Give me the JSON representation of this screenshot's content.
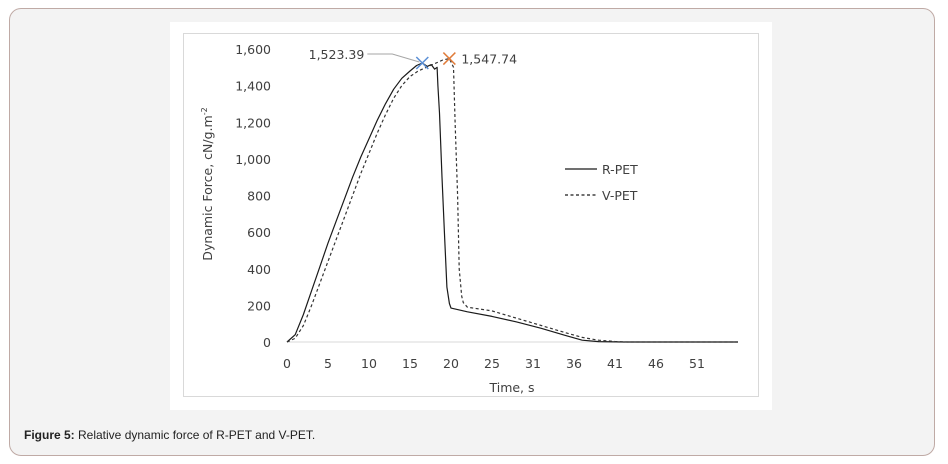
{
  "caption": {
    "label": "Figure 5:",
    "text": " Relative dynamic force of R-PET and V-PET."
  },
  "chart_data": {
    "type": "line",
    "title": "",
    "xlabel": "Time, s",
    "ylabel": "Dynamic Force, cN/g.m",
    "ylabel_superscript": "-2",
    "x_tick_labels": [
      "0",
      "5",
      "10",
      "15",
      "20",
      "25",
      "31",
      "36",
      "41",
      "46",
      "51"
    ],
    "y_tick_labels": [
      "0",
      "200",
      "400",
      "600",
      "800",
      "1,000",
      "1,200",
      "1,400",
      "1,600"
    ],
    "ylim": [
      0,
      1600
    ],
    "xlim": [
      0,
      56
    ],
    "grid": false,
    "legend_position": "right-center",
    "series": [
      {
        "name": "R-PET",
        "style": "solid",
        "color": "#000000",
        "x": [
          0,
          1,
          2,
          3,
          4,
          5,
          6,
          7,
          8,
          9,
          10,
          11,
          12,
          13,
          14,
          15,
          15.8,
          16.5,
          17.1,
          17.6,
          18.0,
          18.3,
          18.4,
          18.6,
          18.9,
          19.2,
          19.5,
          19.8,
          20.0,
          22,
          25,
          28,
          31,
          34,
          36,
          38,
          41,
          46,
          51,
          55
        ],
        "y": [
          0,
          40,
          150,
          280,
          410,
          540,
          660,
          780,
          900,
          1010,
          1110,
          1210,
          1300,
          1380,
          1440,
          1480,
          1510,
          1523.39,
          1505,
          1515,
          1490,
          1500,
          1400,
          1250,
          900,
          600,
          300,
          210,
          185,
          165,
          140,
          110,
          75,
          35,
          10,
          2,
          0,
          0,
          0,
          0
        ]
      },
      {
        "name": "V-PET",
        "style": "dashed",
        "color": "#000000",
        "x": [
          0,
          1,
          2,
          3,
          4,
          5,
          6,
          7,
          8,
          9,
          10,
          11,
          12,
          13,
          14,
          15,
          16,
          17,
          18,
          19,
          19.8,
          20.3,
          20.5,
          20.8,
          21.0,
          21.3,
          21.5,
          22,
          25,
          28,
          31,
          34,
          36,
          38,
          40,
          41.5,
          46,
          51,
          55
        ],
        "y": [
          0,
          20,
          90,
          200,
          320,
          440,
          560,
          680,
          800,
          920,
          1030,
          1140,
          1240,
          1330,
          1400,
          1450,
          1480,
          1500,
          1520,
          1540,
          1547.74,
          1500,
          1200,
          800,
          400,
          250,
          215,
          190,
          170,
          130,
          90,
          50,
          25,
          10,
          3,
          0,
          0,
          0,
          0
        ]
      }
    ],
    "annotations": [
      {
        "series": "R-PET",
        "label": "1,523.39",
        "marker": "x",
        "color": "#5b8fd6",
        "x": 16.5,
        "y": 1523.39
      },
      {
        "series": "V-PET",
        "label": "1,547.74",
        "marker": "x",
        "color": "#e07b39",
        "x": 19.8,
        "y": 1547.74
      }
    ]
  }
}
